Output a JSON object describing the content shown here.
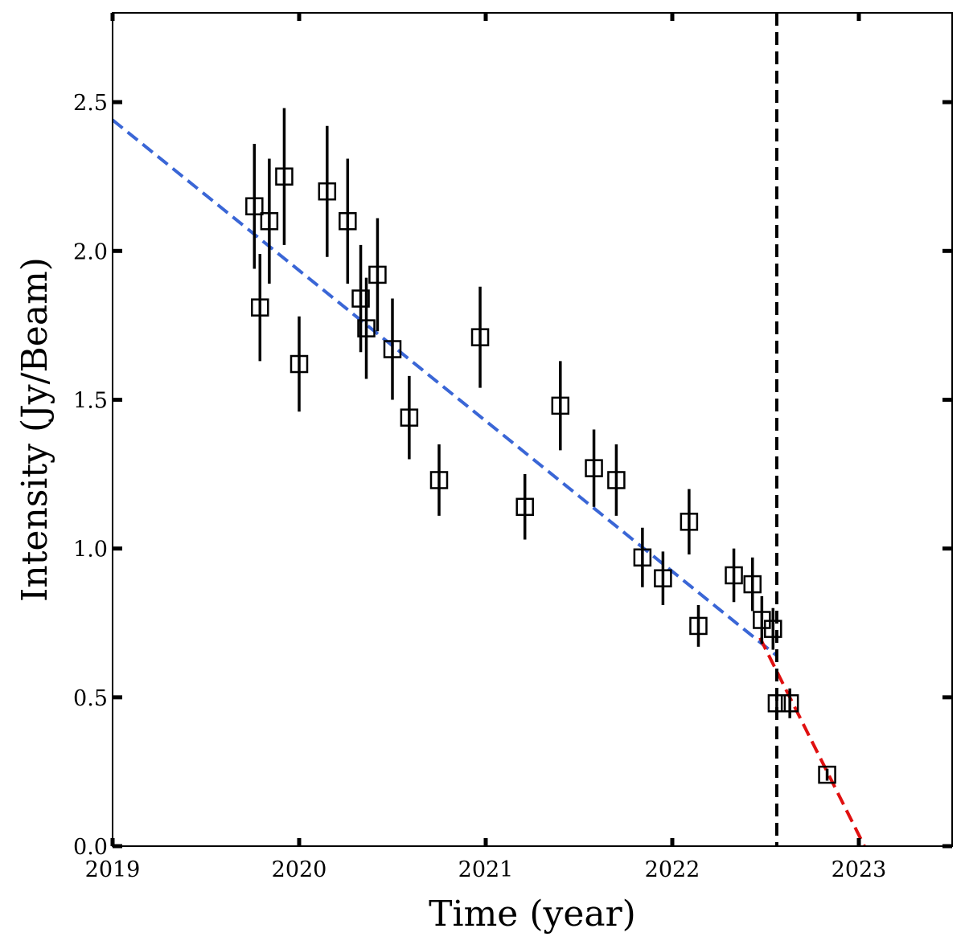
{
  "chart_data": {
    "type": "scatter",
    "title": "",
    "xlabel": "Time (year)",
    "ylabel": "Intensity (Jy/Beam)",
    "xlim": [
      2019.0,
      2023.5
    ],
    "ylim": [
      0.0,
      2.8
    ],
    "x_ticks": [
      2019,
      2020,
      2021,
      2022,
      2023
    ],
    "x_tick_labels": [
      "2019",
      "2020",
      "2021",
      "2022",
      "2023"
    ],
    "y_ticks": [
      0.0,
      0.5,
      1.0,
      1.5,
      2.0,
      2.5
    ],
    "y_tick_labels": [
      "0.0",
      "0.5",
      "1.0",
      "1.5",
      "2.0",
      "2.5"
    ],
    "grid": false,
    "legend": "none",
    "marker": "open-square",
    "colors": {
      "points": "#000000",
      "fit_before": "#3a66d6",
      "fit_after": "#e01010",
      "event_line": "#000000"
    },
    "points": [
      {
        "x": 2019.76,
        "y": 2.15,
        "err": 0.21
      },
      {
        "x": 2019.79,
        "y": 1.81,
        "err": 0.18
      },
      {
        "x": 2019.84,
        "y": 2.1,
        "err": 0.21
      },
      {
        "x": 2019.92,
        "y": 2.25,
        "err": 0.23
      },
      {
        "x": 2020.0,
        "y": 1.62,
        "err": 0.16
      },
      {
        "x": 2020.15,
        "y": 2.2,
        "err": 0.22
      },
      {
        "x": 2020.26,
        "y": 2.1,
        "err": 0.21
      },
      {
        "x": 2020.33,
        "y": 1.84,
        "err": 0.18
      },
      {
        "x": 2020.36,
        "y": 1.74,
        "err": 0.17
      },
      {
        "x": 2020.42,
        "y": 1.92,
        "err": 0.19
      },
      {
        "x": 2020.5,
        "y": 1.67,
        "err": 0.17
      },
      {
        "x": 2020.59,
        "y": 1.44,
        "err": 0.14
      },
      {
        "x": 2020.75,
        "y": 1.23,
        "err": 0.12
      },
      {
        "x": 2020.97,
        "y": 1.71,
        "err": 0.17
      },
      {
        "x": 2021.21,
        "y": 1.14,
        "err": 0.11
      },
      {
        "x": 2021.4,
        "y": 1.48,
        "err": 0.15
      },
      {
        "x": 2021.58,
        "y": 1.27,
        "err": 0.13
      },
      {
        "x": 2021.7,
        "y": 1.23,
        "err": 0.12
      },
      {
        "x": 2021.84,
        "y": 0.97,
        "err": 0.1
      },
      {
        "x": 2021.95,
        "y": 0.9,
        "err": 0.09
      },
      {
        "x": 2022.09,
        "y": 1.09,
        "err": 0.11
      },
      {
        "x": 2022.14,
        "y": 0.74,
        "err": 0.07
      },
      {
        "x": 2022.33,
        "y": 0.91,
        "err": 0.09
      },
      {
        "x": 2022.43,
        "y": 0.88,
        "err": 0.09
      },
      {
        "x": 2022.48,
        "y": 0.76,
        "err": 0.08
      },
      {
        "x": 2022.54,
        "y": 0.73,
        "err": 0.07
      },
      {
        "x": 2022.56,
        "y": 0.48,
        "err": 0.05
      },
      {
        "x": 2022.63,
        "y": 0.48,
        "err": 0.05
      },
      {
        "x": 2022.83,
        "y": 0.24,
        "err": 0.02
      }
    ],
    "fit_lines": [
      {
        "style": "dashed",
        "color": "#3a66d6",
        "x": [
          2019.0,
          2022.56
        ],
        "y": [
          2.44,
          0.64
        ]
      },
      {
        "style": "dashed",
        "color": "#e01010",
        "x": [
          2022.47,
          2023.03
        ],
        "y": [
          0.7,
          0.0
        ]
      }
    ],
    "vertical_line": {
      "x": 2022.56,
      "style": "dashed",
      "color": "#000000"
    }
  }
}
